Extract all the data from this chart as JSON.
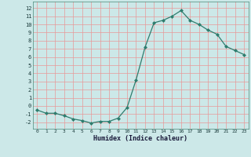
{
  "x": [
    0,
    1,
    2,
    3,
    4,
    5,
    6,
    7,
    8,
    9,
    10,
    11,
    12,
    13,
    14,
    15,
    16,
    17,
    18,
    19,
    20,
    21,
    22,
    23
  ],
  "y": [
    -0.5,
    -0.9,
    -0.9,
    -1.2,
    -1.6,
    -1.8,
    -2.1,
    -1.9,
    -1.9,
    -1.5,
    -0.2,
    3.2,
    7.2,
    10.2,
    10.5,
    11.0,
    11.7,
    10.5,
    10.0,
    9.3,
    8.8,
    7.3,
    6.8,
    6.3
  ],
  "xlabel": "Humidex (Indice chaleur)",
  "line_color": "#2e7d6e",
  "marker_color": "#2e7d6e",
  "bg_color": "#cce8e8",
  "grid_color_v": "#e89898",
  "grid_color_h": "#e89898",
  "xlim": [
    -0.5,
    23.5
  ],
  "ylim": [
    -2.8,
    12.8
  ],
  "yticks": [
    -2,
    -1,
    0,
    1,
    2,
    3,
    4,
    5,
    6,
    7,
    8,
    9,
    10,
    11,
    12
  ],
  "xticks": [
    0,
    1,
    2,
    3,
    4,
    5,
    6,
    7,
    8,
    9,
    10,
    11,
    12,
    13,
    14,
    15,
    16,
    17,
    18,
    19,
    20,
    21,
    22,
    23
  ]
}
